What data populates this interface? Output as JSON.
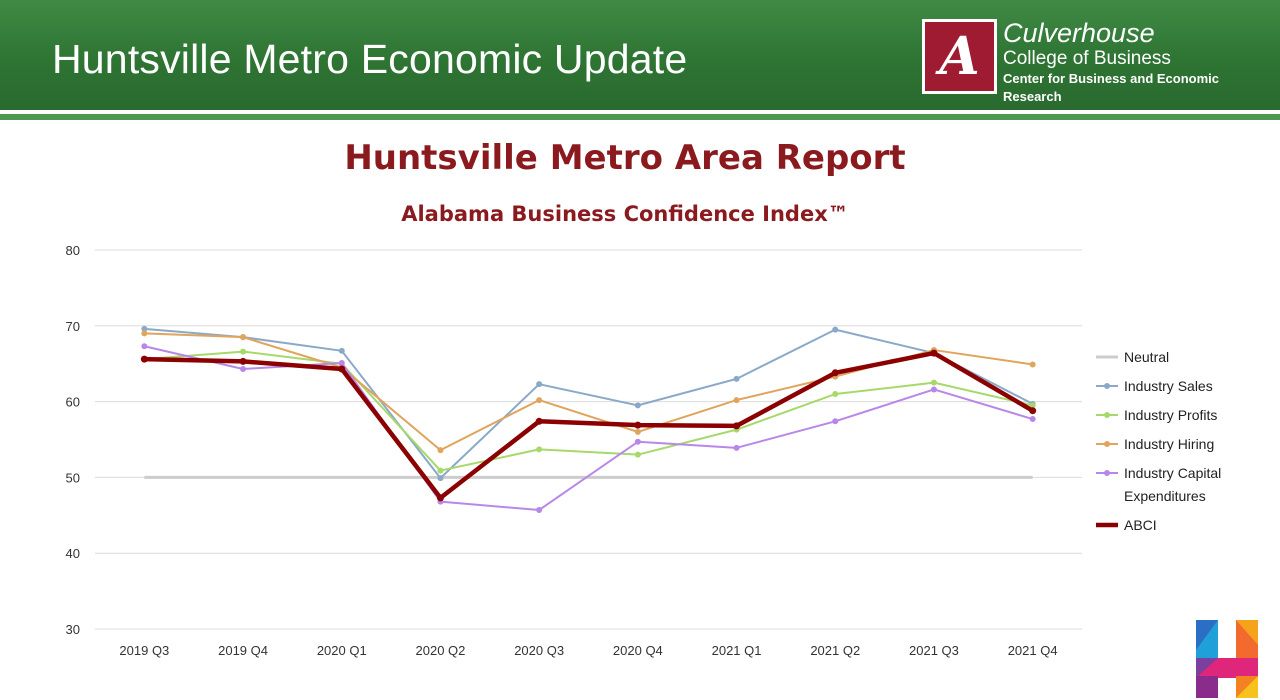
{
  "header": {
    "title": "Huntsville Metro Economic Update",
    "logo_line1": "Culverhouse",
    "logo_line2": "College of Business",
    "logo_line3": "Center for Business and Economic Research",
    "logo_mark": "A"
  },
  "colors": {
    "banner_green": "#2e7433",
    "title_red": "#8b1a1f"
  },
  "chart_data": {
    "type": "line",
    "title": "Huntsville Metro Area Report",
    "subtitle": "Alabama Business Confidence Index™",
    "categories": [
      "2019 Q3",
      "2019 Q4",
      "2020 Q1",
      "2020 Q2",
      "2020 Q3",
      "2020 Q4",
      "2021 Q1",
      "2021 Q2",
      "2021 Q3",
      "2021 Q4"
    ],
    "ylim": [
      30,
      80
    ],
    "yticks": [
      30,
      40,
      50,
      60,
      70,
      80
    ],
    "grid": true,
    "legend_position": "right",
    "series": [
      {
        "name": "Neutral",
        "color": "#cccccc",
        "marker": false,
        "values": [
          50,
          50,
          50,
          50,
          50,
          50,
          50,
          50,
          50,
          50
        ]
      },
      {
        "name": "Industry Sales",
        "color": "#8aa9c9",
        "marker": true,
        "values": [
          69.6,
          68.5,
          66.7,
          49.9,
          62.3,
          59.5,
          63.0,
          69.5,
          66.4,
          59.7
        ]
      },
      {
        "name": "Industry Profits",
        "color": "#a6d96a",
        "marker": true,
        "values": [
          65.6,
          66.6,
          65.0,
          50.9,
          53.7,
          53.0,
          56.3,
          61.0,
          62.5,
          59.5
        ]
      },
      {
        "name": "Industry Hiring",
        "color": "#e0a45c",
        "marker": true,
        "values": [
          69.0,
          68.5,
          64.5,
          53.6,
          60.2,
          56.0,
          60.2,
          63.3,
          66.8,
          64.9
        ]
      },
      {
        "name": "Industry Capital Expenditures",
        "legend_lines": [
          "Industry Capital",
          "Expenditures"
        ],
        "color": "#b987e8",
        "marker": true,
        "values": [
          67.3,
          64.3,
          65.1,
          46.8,
          45.7,
          54.7,
          53.9,
          57.4,
          61.6,
          57.7
        ]
      },
      {
        "name": "ABCI",
        "color": "#8b0000",
        "marker": true,
        "bold": true,
        "values": [
          65.6,
          65.3,
          64.3,
          47.3,
          57.4,
          56.9,
          56.8,
          63.8,
          66.4,
          58.8
        ]
      }
    ]
  }
}
